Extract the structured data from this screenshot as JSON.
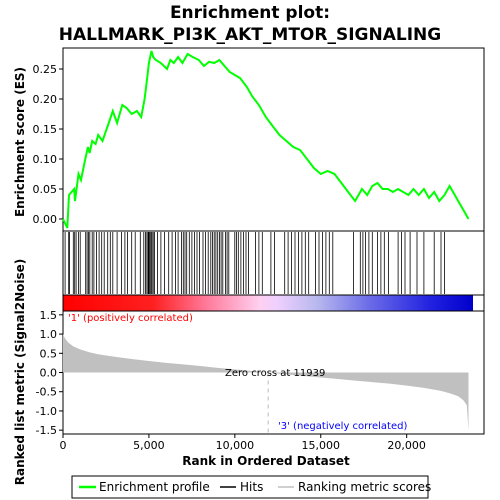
{
  "chart_data": [
    {
      "type": "line",
      "title_lines": [
        "Enrichment plot:",
        "HALLMARK_PI3K_AKT_MTOR_SIGNALING"
      ],
      "ylabel": "Enrichment score (ES)",
      "yticks": [
        "0.00",
        "0.05",
        "0.10",
        "0.15",
        "0.20",
        "0.25"
      ],
      "ylim": [
        -0.02,
        0.285
      ],
      "xlim": [
        0,
        24500
      ],
      "series": [
        {
          "name": "Enrichment profile",
          "color": "#00ff00",
          "x": [
            0,
            250,
            350,
            650,
            700,
            900,
            1050,
            1300,
            1450,
            1550,
            1700,
            1900,
            2050,
            2300,
            2600,
            2900,
            3150,
            3450,
            3700,
            4000,
            4300,
            4550,
            4750,
            4900,
            5000,
            5150,
            5250,
            5400,
            5700,
            6050,
            6250,
            6450,
            6700,
            6950,
            7250,
            7550,
            7900,
            8200,
            8500,
            8800,
            9100,
            9400,
            9700,
            10000,
            10300,
            10700,
            11000,
            11400,
            11800,
            12200,
            12600,
            13000,
            13400,
            13800,
            14200,
            14600,
            15000,
            15400,
            15800,
            16200,
            16600,
            17000,
            17400,
            17700,
            18000,
            18300,
            18600,
            18900,
            19200,
            19500,
            19800,
            20100,
            20400,
            20700,
            21000,
            21300,
            21600,
            21900,
            22200,
            22500,
            22800,
            23100,
            23400,
            23600
          ],
          "y": [
            0.0,
            -0.015,
            0.04,
            0.05,
            0.03,
            0.075,
            0.065,
            0.1,
            0.12,
            0.11,
            0.13,
            0.125,
            0.14,
            0.13,
            0.155,
            0.18,
            0.16,
            0.19,
            0.185,
            0.175,
            0.18,
            0.17,
            0.2,
            0.235,
            0.26,
            0.28,
            0.27,
            0.265,
            0.26,
            0.25,
            0.265,
            0.26,
            0.27,
            0.26,
            0.275,
            0.27,
            0.265,
            0.255,
            0.262,
            0.26,
            0.265,
            0.255,
            0.245,
            0.24,
            0.235,
            0.22,
            0.205,
            0.19,
            0.17,
            0.155,
            0.14,
            0.13,
            0.12,
            0.115,
            0.1,
            0.085,
            0.075,
            0.08,
            0.075,
            0.06,
            0.045,
            0.03,
            0.05,
            0.04,
            0.055,
            0.06,
            0.05,
            0.05,
            0.045,
            0.05,
            0.045,
            0.04,
            0.05,
            0.04,
            0.05,
            0.035,
            0.045,
            0.03,
            0.04,
            0.055,
            0.04,
            0.025,
            0.01,
            0.0
          ]
        }
      ],
      "grid": false
    },
    {
      "type": "barcode",
      "series": [
        {
          "name": "Hits",
          "color": "#000000",
          "x": [
            120,
            330,
            380,
            600,
            680,
            760,
            900,
            1000,
            1320,
            1400,
            1480,
            1560,
            1700,
            1800,
            1950,
            2100,
            2250,
            2400,
            2600,
            2750,
            2900,
            3150,
            3400,
            3600,
            3750,
            4000,
            4200,
            4500,
            4700,
            4800,
            4880,
            4950,
            5000,
            5060,
            5120,
            5180,
            5250,
            5320,
            5500,
            5700,
            5900,
            6150,
            6350,
            6550,
            6700,
            6900,
            7000,
            7100,
            7200,
            7350,
            7500,
            7650,
            7800,
            7950,
            8150,
            8300,
            8450,
            8600,
            8700,
            8800,
            8900,
            9000,
            9100,
            9200,
            9300,
            9450,
            9550,
            9650,
            10000,
            10100,
            10200,
            10350,
            10500,
            10650,
            10800,
            11200,
            11400,
            11600,
            12100,
            12300,
            12900,
            13100,
            13300,
            13500,
            13700,
            13900,
            14100,
            14300,
            14700,
            14900,
            15100,
            15300,
            15500,
            15700,
            16900,
            17300,
            17450,
            17600,
            17800,
            18000,
            18300,
            18500,
            18700,
            18950,
            19500,
            19700,
            19900,
            20200,
            20600,
            21000,
            21600,
            22000,
            22200
          ]
        }
      ]
    },
    {
      "type": "area",
      "ylabel": "Ranked list metric (Signal2Noise)",
      "xlabel": "Rank in Ordered Dataset",
      "yticks": [
        "1.5",
        "1.0",
        "0.5",
        "0.0",
        "-0.5",
        "-1.0",
        "-1.5"
      ],
      "xticks": [
        "0",
        "5,000",
        "10,000",
        "15,000",
        "20,000"
      ],
      "ylim": [
        -1.6,
        1.6
      ],
      "xlim": [
        0,
        24500
      ],
      "zero_cross": 11939,
      "series": [
        {
          "name": "Ranking metric scores",
          "color": "#c0c0c0",
          "x": [
            0,
            100,
            300,
            600,
            1000,
            1500,
            2000,
            3000,
            4000,
            5000,
            6000,
            7000,
            8000,
            9000,
            10000,
            11000,
            11939,
            13000,
            14000,
            15000,
            16000,
            17000,
            18000,
            19000,
            20000,
            21000,
            22000,
            22500,
            23000,
            23300,
            23500,
            23600
          ],
          "y": [
            1.0,
            0.9,
            0.78,
            0.68,
            0.6,
            0.53,
            0.48,
            0.41,
            0.35,
            0.3,
            0.25,
            0.21,
            0.17,
            0.12,
            0.08,
            0.04,
            0.0,
            -0.05,
            -0.09,
            -0.13,
            -0.17,
            -0.21,
            -0.25,
            -0.29,
            -0.34,
            -0.4,
            -0.48,
            -0.54,
            -0.62,
            -0.72,
            -0.85,
            -1.5
          ]
        }
      ]
    }
  ],
  "annotations": {
    "positive": "'1' (positively correlated)",
    "negative": "'3' (negatively correlated)",
    "zero_cross": "Zero cross at 11939"
  },
  "colors": {
    "positive": "#ff0000",
    "negative": "#0000ff",
    "profile": "#00ff00"
  },
  "legend": {
    "items": [
      {
        "label": "Enrichment profile",
        "color": "#00ff00"
      },
      {
        "label": "Hits",
        "color": "#000000"
      },
      {
        "label": "Ranking metric scores",
        "color": "#c0c0c0"
      }
    ]
  }
}
